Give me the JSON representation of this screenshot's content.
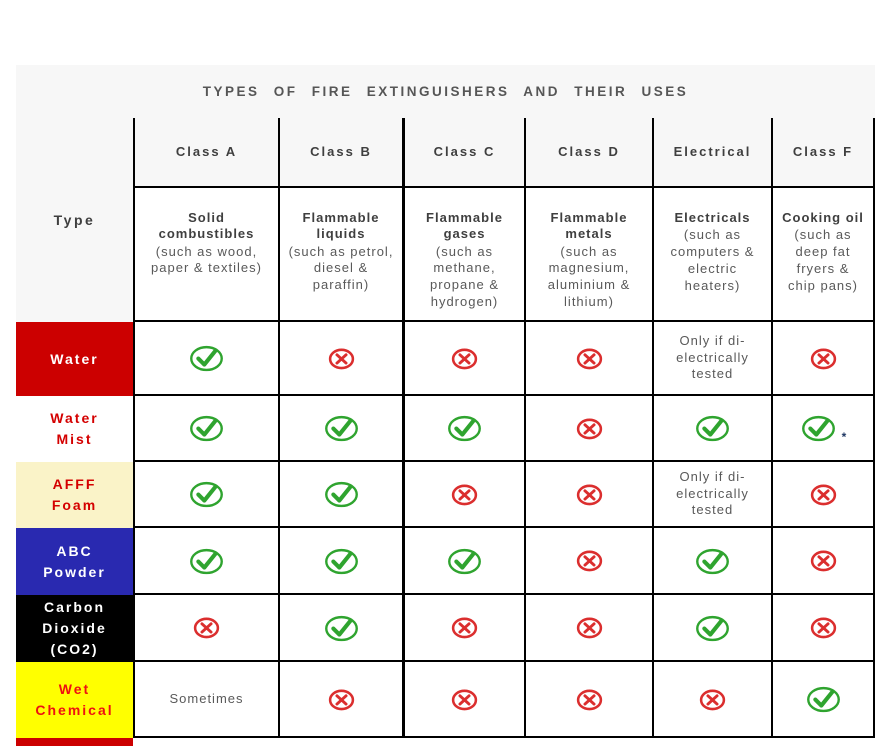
{
  "title": "TYPES OF FIRE EXTINGUISHERS AND THEIR USES",
  "type_column_header": "Type",
  "columns": [
    {
      "key": "class-a",
      "label": "Class A",
      "bold": "Solid combustibles",
      "detail": "(such as wood, paper & textiles)"
    },
    {
      "key": "class-b",
      "label": "Class B",
      "bold": "Flammable liquids",
      "detail": "(such as petrol, diesel & paraffin)"
    },
    {
      "key": "class-c",
      "label": "Class C",
      "bold": "Flammable gases",
      "detail": "(such as methane, propane & hydrogen)"
    },
    {
      "key": "class-d",
      "label": "Class D",
      "bold": "Flammable metals",
      "detail": "(such as magnesium, aluminium & lithium)"
    },
    {
      "key": "electrical",
      "label": "Electrical",
      "bold": "Electricals",
      "detail": "(such as computers & electric heaters)"
    },
    {
      "key": "class-f",
      "label": "Class F",
      "bold": "Cooking oil",
      "detail": "(such as deep fat fryers & chip pans)"
    }
  ],
  "rows": [
    {
      "key": "water",
      "label": "Water",
      "bg": "#cc0000",
      "fg": "#ffffff",
      "cells": [
        {
          "kind": "check"
        },
        {
          "kind": "cross"
        },
        {
          "kind": "cross"
        },
        {
          "kind": "cross"
        },
        {
          "kind": "text",
          "text": "Only if di-electrically tested"
        },
        {
          "kind": "cross"
        }
      ]
    },
    {
      "key": "water-mist",
      "label": "Water Mist",
      "bg": "#ffffff",
      "fg": "#d40000",
      "cells": [
        {
          "kind": "check"
        },
        {
          "kind": "check"
        },
        {
          "kind": "check"
        },
        {
          "kind": "cross"
        },
        {
          "kind": "check"
        },
        {
          "kind": "check",
          "suffix": "*"
        }
      ]
    },
    {
      "key": "afff-foam",
      "label": "AFFF Foam",
      "bg": "#faf3c8",
      "fg": "#d40000",
      "cells": [
        {
          "kind": "check"
        },
        {
          "kind": "check"
        },
        {
          "kind": "cross"
        },
        {
          "kind": "cross"
        },
        {
          "kind": "text",
          "text": "Only if di-electrically tested"
        },
        {
          "kind": "cross"
        }
      ]
    },
    {
      "key": "abc-powder",
      "label": "ABC Powder",
      "bg": "#2929b0",
      "fg": "#ffffff",
      "cells": [
        {
          "kind": "check"
        },
        {
          "kind": "check"
        },
        {
          "kind": "check"
        },
        {
          "kind": "cross"
        },
        {
          "kind": "check"
        },
        {
          "kind": "cross"
        }
      ]
    },
    {
      "key": "carbon-dioxide",
      "label": "Carbon Dioxide (CO2)",
      "bg": "#000000",
      "fg": "#ffffff",
      "cells": [
        {
          "kind": "cross"
        },
        {
          "kind": "check"
        },
        {
          "kind": "cross"
        },
        {
          "kind": "cross"
        },
        {
          "kind": "check"
        },
        {
          "kind": "cross"
        }
      ]
    },
    {
      "key": "wet-chemical",
      "label": "Wet Chemical",
      "bg": "#ffff00",
      "fg": "#ee1111",
      "cells": [
        {
          "kind": "text",
          "text": "Sometimes"
        },
        {
          "kind": "cross"
        },
        {
          "kind": "cross"
        },
        {
          "kind": "cross"
        },
        {
          "kind": "cross"
        },
        {
          "kind": "check"
        }
      ]
    }
  ],
  "icons": {
    "check": "check-in-ellipse",
    "cross": "x-in-ellipse"
  },
  "colors": {
    "check_green": "#2fa42f",
    "cross_red": "#db2e2e",
    "grid_line": "#000000",
    "panel_bg": "#f7f7f7",
    "note_text": "#595959",
    "header_text": "#3f3f3f",
    "asterisk": "#203864",
    "bottom_strip": "#cc0000"
  }
}
